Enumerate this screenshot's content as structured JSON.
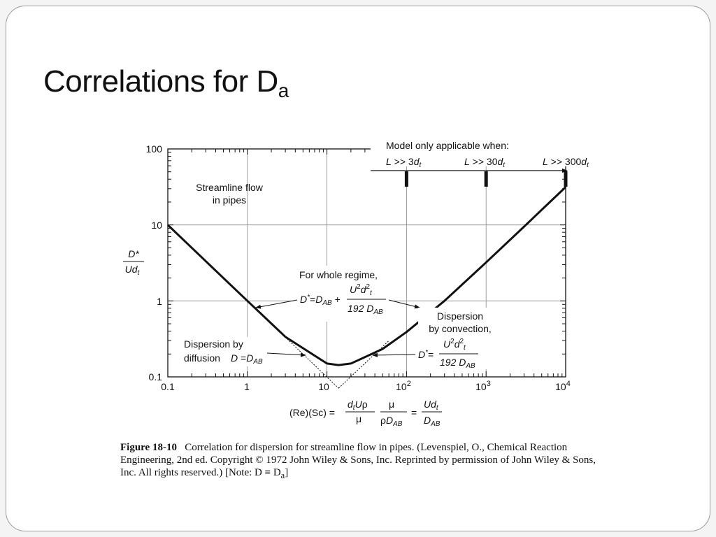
{
  "slide": {
    "title": "Correlations for D",
    "title_subscript": "a"
  },
  "chart_data": {
    "type": "line",
    "x_scale": "log",
    "y_scale": "log",
    "xlim": [
      0.1,
      10000
    ],
    "ylim": [
      0.1,
      100
    ],
    "x_ticks": [
      "0.1",
      "1",
      "10",
      "10^2",
      "10^3",
      "10^4"
    ],
    "y_ticks": [
      "0.1",
      "1",
      "10",
      "100"
    ],
    "grid": true,
    "ylabel": "D*/Ud_t",
    "xlabel": "(Re)(Sc) = (d_t U ρ / μ)(μ / ρ D_AB) = U d_t / D_AB",
    "series": [
      {
        "curve": "whole-regime",
        "x": [
          0.1,
          0.3,
          1,
          3,
          10,
          14,
          20,
          50,
          100,
          300,
          1000,
          3000,
          10000
        ],
        "y": [
          10,
          3.33,
          1.0,
          0.337,
          0.15,
          0.143,
          0.15,
          0.233,
          0.39,
          1.0,
          3.21,
          9.5,
          31.5
        ]
      },
      {
        "curve": "diffusion-asymptote",
        "x": [
          3,
          14
        ],
        "y": [
          0.333,
          0.071
        ]
      },
      {
        "curve": "convection-asymptote",
        "x": [
          14,
          60
        ],
        "y": [
          0.071,
          0.3
        ]
      }
    ],
    "applicability_marks": [
      {
        "label": "L >> 3d",
        "sub": "t",
        "x": 100
      },
      {
        "label": "L >> 30d",
        "sub": "t",
        "x": 1000
      },
      {
        "label": "L >> 300d",
        "sub": "t",
        "x": 10000
      }
    ]
  },
  "annotations": {
    "model_header": "Model only applicable when:",
    "streamline_line1": "Streamline flow",
    "streamline_line2": "in pipes",
    "whole_regime_label": "For whole regime,",
    "convection_line1": "Dispersion",
    "convection_line2": "by convection,",
    "diffusion_line1": "Dispersion by",
    "diffusion_line2": "diffusion",
    "whole_regime_formula": "D* = D_AB + U^2 d_t^2 / 192 D_AB",
    "convection_formula": "D* = U^2 d_t^2 / 192 D_AB",
    "diffusion_formula": "D = D_AB"
  },
  "caption": {
    "figure_label": "Figure 18-10",
    "text": "Correlation for dispersion for streamline flow in pipes. (Levenspiel, O., Chemical Reaction Engineering, 2nd ed. Copyright © 1972 John Wiley & Sons, Inc. Reprinted by permission of John Wiley & Sons, Inc. All rights reserved.) [Note: D ≡ D",
    "text_subscript": "a",
    "text_end": "]"
  }
}
